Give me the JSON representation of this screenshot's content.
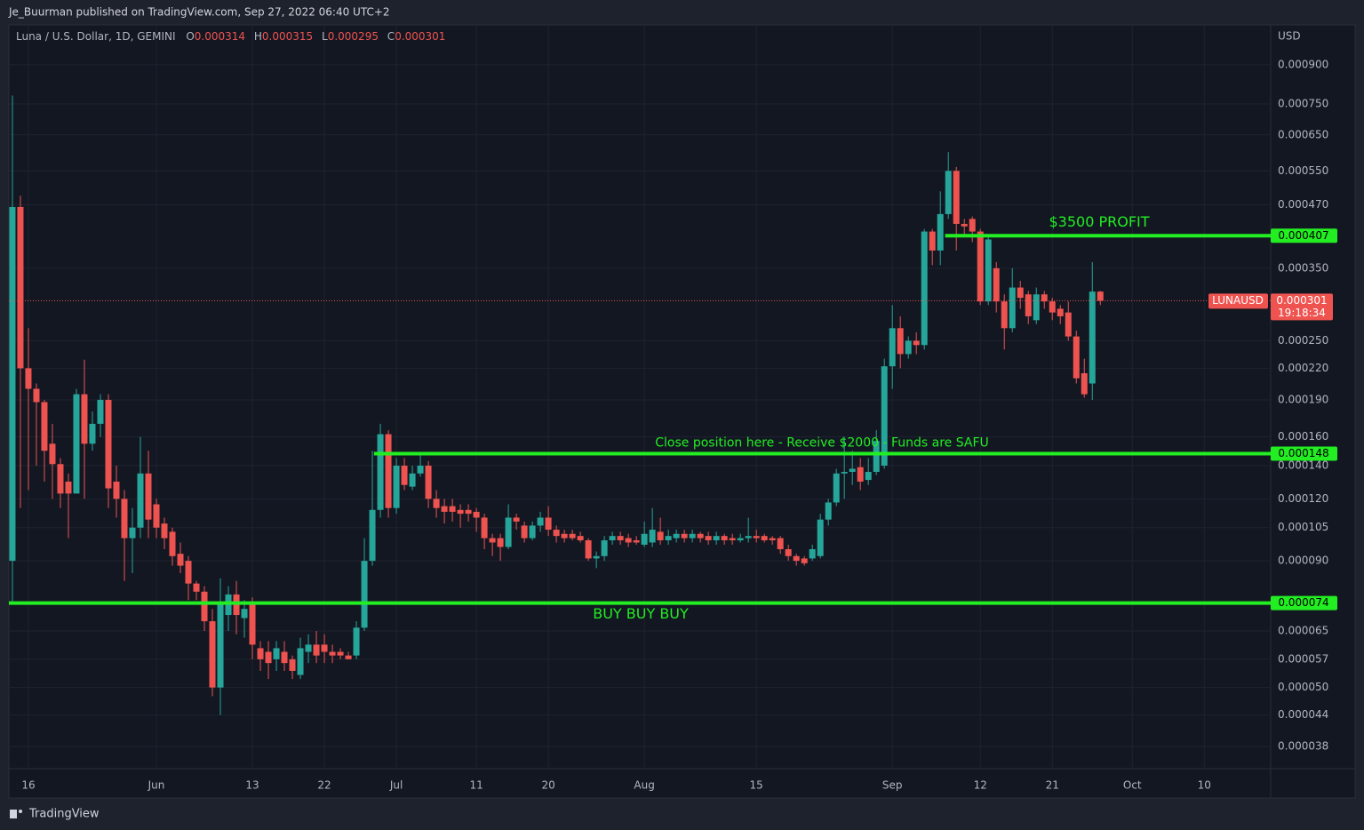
{
  "header": {
    "text": "Je_Buurman published on TradingView.com, Sep 27, 2022 06:40 UTC+2"
  },
  "footer": {
    "brand": "TradingView"
  },
  "chart_data": {
    "type": "candlestick",
    "title": "Luna / U.S. Dollar, 1D, GEMINI",
    "ohlc_labels": [
      "O",
      "H",
      "L",
      "C"
    ],
    "symbol": "LUNAUSD",
    "countdown": "19:18:34",
    "currency": "USD",
    "log_scale": true,
    "grid": true,
    "up_color": "#26a69a",
    "down_color": "#ef5350",
    "open": [
      9e-05,
      0.000465,
      0.00022,
      0.0002,
      0.000188,
      0.000155,
      0.000141,
      0.00013,
      0.000123,
      0.000195,
      0.000155,
      0.00017,
      0.00019,
      0.00013,
      0.00012,
      0.0001,
      0.000105,
      0.000135,
      0.000117,
      0.000107,
      0.000103,
      9.3e-05,
      9e-05,
      8.1e-05,
      7.8e-05,
      6.8e-05,
      5e-05,
      7e-05,
      7.7e-05,
      6.9e-05,
      7.4e-05,
      6e-05,
      5.9e-05,
      5.7e-05,
      5.9e-05,
      5.7e-05,
      5.3e-05,
      5.9e-05,
      6.1e-05,
      6.1e-05,
      5.9e-05,
      5.9e-05,
      5.8e-05,
      5.8e-05,
      6.6e-05,
      9e-05,
      0.000114,
      0.000162,
      0.000115,
      0.00014,
      0.000127,
      0.000135,
      0.00014,
      0.00012,
      0.000116,
      0.000116,
      0.000114,
      0.000114,
      0.000113,
      0.00011,
      0.0001,
      0.0001,
      9.6e-05,
      0.00011,
      0.000106,
      0.0001,
      0.000106,
      0.00011,
      0.000104,
      0.000102,
      0.000102,
      0.000101,
      9.9e-05,
      9.1e-05,
      9.2e-05,
      9.9e-05,
      0.000101,
      0.0001,
      9.9e-05,
      9.7e-05,
      9.8e-05,
      0.000103,
      9.9e-05,
      0.0001,
      0.000102,
      0.0001,
      0.000102,
      0.000101,
      9.9e-05,
      0.000101,
      0.0001,
      9.9e-05,
      0.0001,
      0.000101,
      0.000101,
      0.0001,
      0.0001,
      9.5e-05,
      9.2e-05,
      9.1e-05,
      9.1e-05,
      9.2e-05,
      0.000109,
      0.000118,
      0.000135,
      0.000136,
      0.000139,
      0.000131,
      0.000136,
      0.00014,
      0.000222,
      0.000265,
      0.000235,
      0.00025,
      0.000245,
      0.000415,
      0.00038,
      0.00045,
      0.00055,
      0.00043,
      0.00044,
      0.000415,
      0.0003,
      0.00035,
      0.0003,
      0.000265,
      0.00032,
      0.00031,
      0.000275,
      0.00031,
      0.0003,
      0.00029,
      0.000285,
      0.000255,
      0.000215,
      0.000205,
      0.000314
    ],
    "high": [
      0.00078,
      0.00049,
      0.000265,
      0.000205,
      0.00019,
      0.00017,
      0.000145,
      0.000135,
      0.0002,
      0.000229,
      0.00018,
      0.000195,
      0.000195,
      0.00014,
      0.000125,
      0.000115,
      0.00016,
      0.00015,
      0.00012,
      0.00011,
      0.000105,
      9.8e-05,
      9.2e-05,
      8.2e-05,
      8e-05,
      7.2e-05,
      8.3e-05,
      8e-05,
      8.2e-05,
      7.5e-05,
      7.6e-05,
      6.2e-05,
      6.2e-05,
      6.2e-05,
      6.2e-05,
      5.8e-05,
      6.3e-05,
      6.4e-05,
      6.5e-05,
      6.4e-05,
      6.1e-05,
      6e-05,
      5.9e-05,
      6.8e-05,
      0.0001,
      0.00015,
      0.00017,
      0.000165,
      0.000145,
      0.000145,
      0.00014,
      0.000148,
      0.000143,
      0.000125,
      0.00012,
      0.00012,
      0.000117,
      0.000117,
      0.000115,
      0.000112,
      0.000102,
      0.000102,
      0.000117,
      0.000112,
      0.000108,
      0.000108,
      0.000113,
      0.000116,
      0.000106,
      0.000104,
      0.000104,
      0.000103,
      0.0001,
      9.4e-05,
      0.000101,
      0.000103,
      0.000103,
      0.000102,
      0.000101,
      0.000108,
      0.000115,
      0.00011,
      0.000104,
      0.000104,
      0.000104,
      0.000104,
      0.000103,
      0.000103,
      0.000103,
      0.000102,
      0.000102,
      0.000102,
      0.00011,
      0.000104,
      0.000102,
      0.000101,
      0.000101,
      9.7e-05,
      9.3e-05,
      9.2e-05,
      9.7e-05,
      0.000112,
      0.00012,
      0.000138,
      0.00016,
      0.00015,
      0.000145,
      0.000145,
      0.000165,
      0.00023,
      0.000295,
      0.00028,
      0.000255,
      0.00026,
      0.00042,
      0.00042,
      0.0005,
      0.0006,
      0.00056,
      0.00044,
      0.000445,
      0.00042,
      0.00041,
      0.00036,
      0.00031,
      0.00035,
      0.00033,
      0.000315,
      0.00032,
      0.000315,
      0.000305,
      0.000295,
      0.0003,
      0.000262,
      0.00023,
      0.00036,
      0.000315
    ],
    "low": [
      7.4e-05,
      0.000115,
      0.000125,
      0.00014,
      0.00013,
      0.00012,
      0.000115,
      0.0001,
      0.000123,
      0.00012,
      0.00015,
      0.00016,
      0.000115,
      0.00011,
      8.2e-05,
      8.5e-05,
      0.0001,
      0.0001,
      0.0001,
      9.5e-05,
      8.8e-05,
      8.5e-05,
      7.5e-05,
      7.5e-05,
      6.5e-05,
      4.8e-05,
      4.4e-05,
      6.5e-05,
      6.4e-05,
      6.3e-05,
      5.7e-05,
      5.4e-05,
      5.2e-05,
      5.4e-05,
      5.4e-05,
      5.2e-05,
      5.2e-05,
      5.6e-05,
      5.6e-05,
      5.6e-05,
      5.6e-05,
      5.7e-05,
      5.7e-05,
      5.7e-05,
      6.5e-05,
      8.8e-05,
      0.00011,
      0.00011,
      0.000112,
      0.000125,
      0.000125,
      0.000133,
      0.000115,
      0.00011,
      0.000107,
      0.000108,
      0.000105,
      0.000108,
      0.000103,
      9.5e-05,
      9.2e-05,
      9e-05,
      9.5e-05,
      0.000104,
      9.8e-05,
      9.9e-05,
      0.000103,
      0.000101,
      9.8e-05,
      9.8e-05,
      9.9e-05,
      9.8e-05,
      9e-05,
      8.7e-05,
      9e-05,
      9.7e-05,
      9.7e-05,
      9.6e-05,
      9.7e-05,
      9.6e-05,
      9.6e-05,
      9.7e-05,
      9.7e-05,
      9.8e-05,
      9.8e-05,
      9.8e-05,
      9.8e-05,
      9.7e-05,
      9.7e-05,
      9.7e-05,
      9.7e-05,
      9.8e-05,
      9.8e-05,
      9.8e-05,
      9.8e-05,
      9.7e-05,
      9.3e-05,
      9e-05,
      8.8e-05,
      8.8e-05,
      9e-05,
      9.1e-05,
      0.000106,
      0.000116,
      0.00012,
      0.000128,
      0.000125,
      0.000128,
      0.000134,
      0.000138,
      0.0002,
      0.00022,
      0.00023,
      0.000235,
      0.00024,
      0.000355,
      0.000355,
      0.00044,
      0.00038,
      0.00041,
      0.000395,
      0.000295,
      0.000295,
      0.000285,
      0.00024,
      0.00026,
      0.00029,
      0.00027,
      0.00027,
      0.00029,
      0.000275,
      0.00027,
      0.00025,
      0.000205,
      0.000192,
      0.00019,
      0.000295
    ],
    "close": [
      0.000465,
      0.00022,
      0.0002,
      0.000188,
      0.00015,
      0.000141,
      0.000123,
      0.000123,
      0.000195,
      0.000155,
      0.00017,
      0.00019,
      0.000126,
      0.00012,
      0.0001,
      0.000105,
      0.000135,
      0.000109,
      0.000105,
      0.0001,
      9.2e-05,
      8.8e-05,
      8.1e-05,
      7.8e-05,
      6.8e-05,
      5e-05,
      7.4e-05,
      7.7e-05,
      7e-05,
      7.2e-05,
      6.1e-05,
      5.7e-05,
      5.6e-05,
      6e-05,
      5.6e-05,
      5.4e-05,
      6e-05,
      6.1e-05,
      5.8e-05,
      5.9e-05,
      5.8e-05,
      5.8e-05,
      5.7e-05,
      6.6e-05,
      9e-05,
      0.000114,
      0.000162,
      0.000115,
      0.00014,
      0.000128,
      0.000135,
      0.00014,
      0.00012,
      0.000115,
      0.000113,
      0.000113,
      0.000112,
      0.000112,
      0.00011,
      0.0001,
      9.8e-05,
      9.6e-05,
      0.00011,
      0.000108,
      0.0001,
      0.000106,
      0.00011,
      0.000104,
      0.000101,
      0.0001,
      0.0001,
      9.9e-05,
      9.1e-05,
      9.2e-05,
      9.9e-05,
      0.000101,
      9.9e-05,
      9.8e-05,
      9.8e-05,
      0.000102,
      0.000104,
      9.9e-05,
      0.000101,
      0.000102,
      0.0001,
      0.000102,
      0.0001,
      9.9e-05,
      0.000101,
      9.9e-05,
      9.9e-05,
      0.0001,
      0.000101,
      0.0001,
      9.9e-05,
      9.9e-05,
      9.5e-05,
      9.2e-05,
      9e-05,
      8.9e-05,
      9.5e-05,
      0.000109,
      0.000118,
      0.000135,
      0.000136,
      0.000138,
      0.00013,
      0.000136,
      0.000157,
      0.000222,
      0.000265,
      0.000235,
      0.00025,
      0.000245,
      0.000415,
      0.00038,
      0.00045,
      0.00055,
      0.00043,
      0.000425,
      0.000415,
      0.0003,
      0.0004,
      0.0003,
      0.000265,
      0.00032,
      0.000305,
      0.00028,
      0.00031,
      0.0003,
      0.000285,
      0.00028,
      0.000255,
      0.00021,
      0.000195,
      0.000314,
      0.000301
    ],
    "xlim": [
      -0.44,
      157.3
    ],
    "xticks": [
      {
        "value": 2,
        "label": "16"
      },
      {
        "value": 18,
        "label": "Jun"
      },
      {
        "value": 30,
        "label": "13"
      },
      {
        "value": 39,
        "label": "22"
      },
      {
        "value": 48,
        "label": "Jul"
      },
      {
        "value": 58,
        "label": "11"
      },
      {
        "value": 67,
        "label": "20"
      },
      {
        "value": 79,
        "label": "Aug"
      },
      {
        "value": 93,
        "label": "15"
      },
      {
        "value": 110,
        "label": "Sep"
      },
      {
        "value": 121,
        "label": "12"
      },
      {
        "value": 130,
        "label": "21"
      },
      {
        "value": 140,
        "label": "Oct"
      },
      {
        "value": 149,
        "label": "10"
      }
    ],
    "ylim": [
      3.43e-05,
      0.001074
    ],
    "yticks": [
      {
        "value": 0.0009,
        "label": "0.000900"
      },
      {
        "value": 0.00075,
        "label": "0.000750"
      },
      {
        "value": 0.00065,
        "label": "0.000650"
      },
      {
        "value": 0.00055,
        "label": "0.000550"
      },
      {
        "value": 0.00047,
        "label": "0.000470"
      },
      {
        "value": 0.00035,
        "label": "0.000350"
      },
      {
        "value": 0.00025,
        "label": "0.000250"
      },
      {
        "value": 0.00022,
        "label": "0.000220"
      },
      {
        "value": 0.00019,
        "label": "0.000190"
      },
      {
        "value": 0.00016,
        "label": "0.000160"
      },
      {
        "value": 0.00014,
        "label": "0.000140"
      },
      {
        "value": 0.00012,
        "label": "0.000120"
      },
      0.000105,
      {
        "value": 9e-05,
        "label": "0.000090"
      },
      6.5e-05,
      5.7e-05,
      {
        "value": 5e-05,
        "label": "0.000050"
      },
      4.4e-05,
      3.8e-05
    ],
    "levels": [
      {
        "value": 0.000407,
        "label": "$3500 PROFIT",
        "from": 116.6,
        "color": "#22ee22"
      },
      {
        "value": 0.000148,
        "label": "Close position here - Receive $2000 - Funds are SAFU",
        "from": 45.2,
        "color": "#22ee22"
      },
      {
        "value": 7.4e-05,
        "label": "BUY BUY BUY",
        "from": -0.44,
        "color": "#22ee22"
      }
    ]
  }
}
